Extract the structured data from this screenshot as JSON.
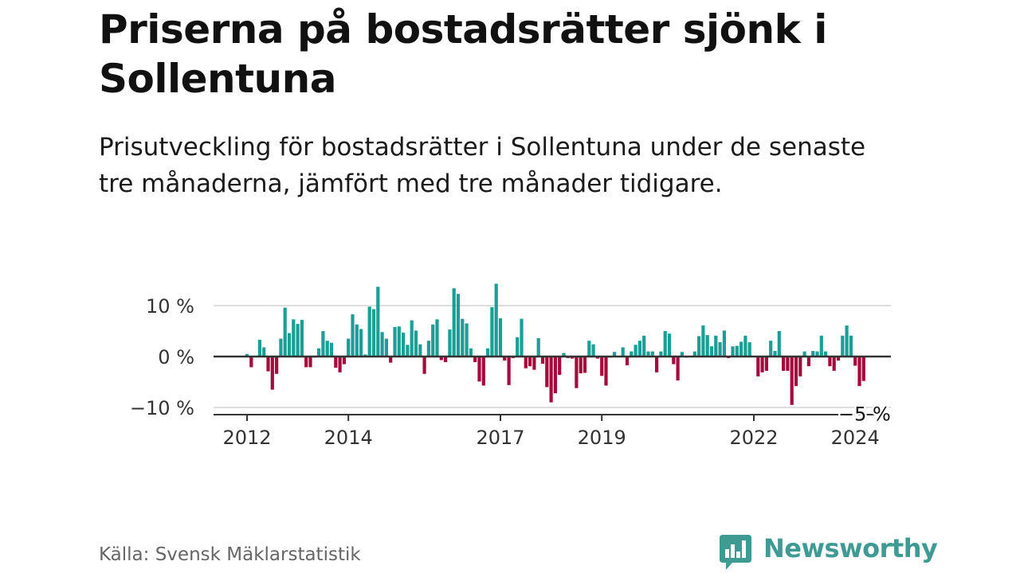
{
  "title": "Priserna på bostadsrätter sjönk i Sollentuna",
  "subtitle": "Prisutveckling för bostadsrätter i Sollentuna under de senaste tre månaderna, jämfört med tre månader tidigare.",
  "source": "Källa: Svensk Mäklarstatistik",
  "brand": {
    "name": "Newsworthy",
    "color": "#3f9a93"
  },
  "colors": {
    "positive": "#1a9e96",
    "negative": "#a50a3c",
    "grid": "#dddddd",
    "axis": "#333333"
  },
  "chart_data": {
    "type": "bar",
    "title": "Priserna på bostadsrätter sjönk i Sollentuna",
    "subtitle": "Prisutveckling för bostadsrätter i Sollentuna under de senaste tre månaderna, jämfört med tre månader tidigare.",
    "xlabel": "",
    "ylabel": "",
    "x_start": "2012-01",
    "x_end": "2024-03",
    "ylim": [
      -10,
      14
    ],
    "y_ticks": [
      {
        "value": 10,
        "label": "10 %"
      },
      {
        "value": 0,
        "label": "0 %"
      },
      {
        "value": -10,
        "label": "−10 %"
      }
    ],
    "x_ticks": [
      {
        "year": 2012,
        "label": "2012"
      },
      {
        "year": 2014,
        "label": "2014"
      },
      {
        "year": 2017,
        "label": "2017"
      },
      {
        "year": 2019,
        "label": "2019"
      },
      {
        "year": 2022,
        "label": "2022"
      },
      {
        "year": 2024,
        "label": "2024"
      }
    ],
    "annotation": {
      "text": "−5 %",
      "target": "last"
    },
    "values": [
      0.5,
      -2.1,
      0,
      3.3,
      1.8,
      -2.9,
      -6.5,
      -3.4,
      3.5,
      9.6,
      4.6,
      7.3,
      6.4,
      7.2,
      -2.1,
      -2.1,
      -0.2,
      1.6,
      5.0,
      3.1,
      2.7,
      -2.2,
      -3.1,
      -1.5,
      3.5,
      8.3,
      6.3,
      5.4,
      0.4,
      9.8,
      9.3,
      13.7,
      4.8,
      3.5,
      -1.2,
      5.8,
      5.9,
      4.7,
      2.3,
      7.1,
      5.1,
      2.4,
      -3.4,
      3.1,
      6.3,
      7.3,
      -0.7,
      -1.1,
      5.3,
      13.4,
      12.3,
      7.4,
      6.5,
      1.6,
      -1.1,
      -4.9,
      -5.7,
      1.6,
      9.7,
      14.3,
      7.5,
      -0.8,
      -5.6,
      -0.3,
      3.8,
      7.4,
      -2.3,
      -1.9,
      -2.6,
      3.6,
      -1.4,
      -6.0,
      -9.0,
      -7.2,
      -3.6,
      0.7,
      -0.3,
      -0.4,
      -6.2,
      -3.3,
      -3.2,
      3.1,
      2.4,
      -0.4,
      -3.8,
      -5.7,
      -0.2,
      0.9,
      -0.1,
      1.8,
      -1.7,
      1.0,
      2.3,
      3.1,
      4.1,
      1.0,
      1.0,
      -3.1,
      1.0,
      5.0,
      4.5,
      -1.5,
      -4.7,
      0.9,
      -0.2,
      0,
      1.0,
      4.0,
      6.1,
      4.2,
      2.0,
      4.1,
      2.8,
      5.1,
      -0.3,
      2.0,
      2.1,
      2.9,
      4.1,
      2.8,
      -0.1,
      -3.9,
      -3.1,
      -2.8,
      3.1,
      1.1,
      5.0,
      -2.8,
      -2.8,
      -9.5,
      -5.8,
      -3.9,
      1.0,
      -1.9,
      1.1,
      1.0,
      4.1,
      1.0,
      -1.9,
      -2.8,
      -0.8,
      4.1,
      6.1,
      4.1,
      -1.8,
      -5.8,
      -4.8
    ]
  }
}
